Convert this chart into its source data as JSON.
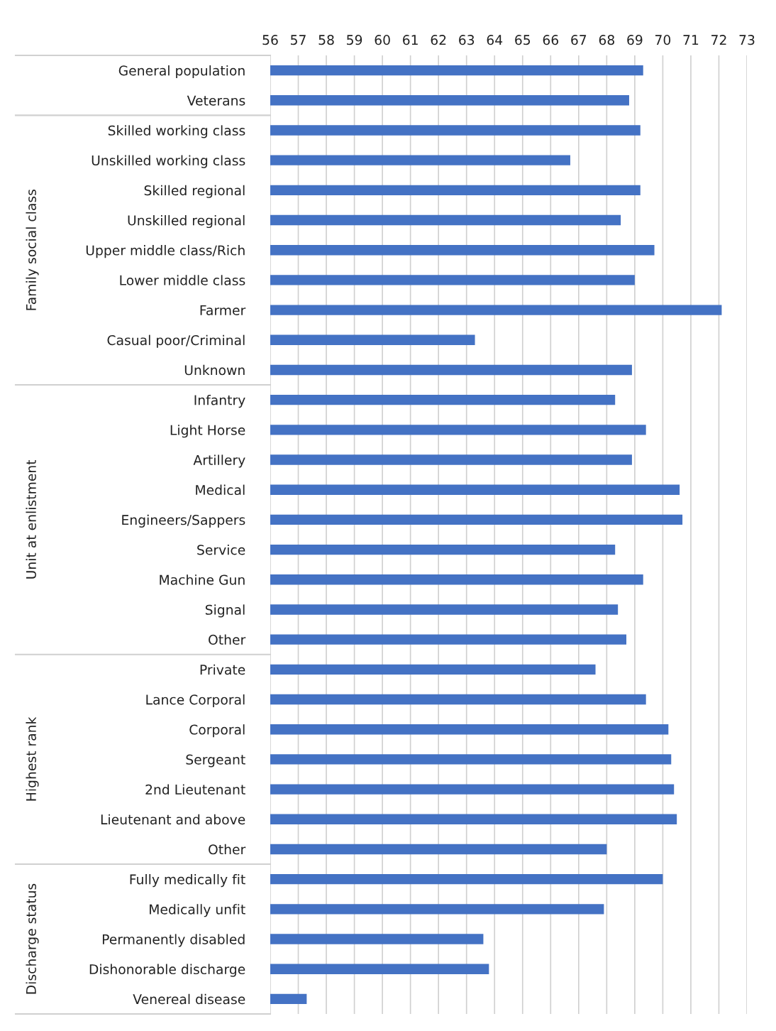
{
  "chart_data": {
    "type": "bar",
    "orientation": "horizontal",
    "categories": [
      "General population",
      "Veterans",
      "Skilled working class",
      "Unskilled working class",
      "Skilled regional",
      "Unskilled regional",
      "Upper middle class/Rich",
      "Lower middle class",
      "Farmer",
      "Casual poor/Criminal",
      "Unknown",
      "Infantry",
      "Light Horse",
      "Artillery",
      "Medical",
      "Engineers/Sappers",
      "Service",
      "Machine Gun",
      "Signal",
      "Other",
      "Private",
      "Lance Corporal",
      "Corporal",
      "Sergeant",
      "2nd Lieutenant",
      "Lieutenant and above",
      "Other",
      "Fully medically fit",
      "Medically unfit",
      "Permanently disabled",
      "Dishonorable discharge",
      "Venereal disease"
    ],
    "values": [
      69.3,
      68.8,
      69.2,
      66.7,
      69.2,
      68.5,
      69.7,
      69.0,
      72.1,
      63.3,
      68.9,
      68.3,
      69.4,
      68.9,
      70.6,
      70.7,
      68.3,
      69.3,
      68.4,
      68.7,
      67.6,
      69.4,
      70.2,
      70.3,
      70.4,
      70.5,
      68.0,
      70.0,
      67.9,
      63.6,
      63.8,
      57.3
    ],
    "color": "#4472c4",
    "xlim": [
      56,
      73
    ],
    "xticks": [
      56,
      57,
      58,
      59,
      60,
      61,
      62,
      63,
      64,
      65,
      66,
      67,
      68,
      69,
      70,
      71,
      72,
      73
    ],
    "grid": "x",
    "annotations": [
      "Family social class",
      "Unit at enlistment",
      "Highest rank",
      "Discharge status"
    ]
  }
}
